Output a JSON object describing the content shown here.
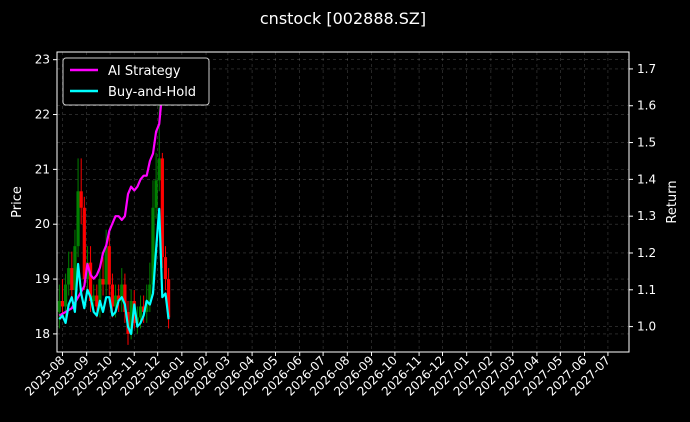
{
  "chart_data": {
    "type": "line",
    "title": "cnstock [002888.SZ]",
    "xlabel": "",
    "ylabel": "Price",
    "y2label": "Return",
    "x_ticks": [
      "2025-08",
      "2025-09",
      "2025-10",
      "2025-11",
      "2025-12",
      "2026-01",
      "2026-02",
      "2026-03",
      "2026-04",
      "2026-05",
      "2026-06",
      "2026-07",
      "2026-08",
      "2026-09",
      "2026-10",
      "2026-11",
      "2026-12",
      "2027-01",
      "2027-02",
      "2027-03",
      "2027-04",
      "2027-05",
      "2027-06",
      "2027-07"
    ],
    "xlim": [
      "2025-07-25",
      "2027-07-28"
    ],
    "ylim": [
      17.67,
      23.14
    ],
    "y_ticks": [
      18,
      19,
      20,
      21,
      22,
      23
    ],
    "y2lim": [
      0.931,
      1.746
    ],
    "y2_ticks": [
      "1.0",
      "1.1",
      "1.2",
      "1.3",
      "1.4",
      "1.5",
      "1.6",
      "1.7"
    ],
    "grid": true,
    "legend": "top-left",
    "background": "#000000",
    "candle_up_color": "#008000",
    "candle_down_color": "#ff0000",
    "candles": {
      "dates": [
        "2025-07-28",
        "2025-08-01",
        "2025-08-05",
        "2025-08-09",
        "2025-08-13",
        "2025-08-17",
        "2025-08-21",
        "2025-08-25",
        "2025-08-29",
        "2025-09-02",
        "2025-09-06",
        "2025-09-10",
        "2025-09-14",
        "2025-09-18",
        "2025-09-22",
        "2025-09-26",
        "2025-09-30",
        "2025-10-04",
        "2025-10-08",
        "2025-10-12",
        "2025-10-16",
        "2025-10-20",
        "2025-10-24",
        "2025-10-28",
        "2025-11-01",
        "2025-11-05",
        "2025-11-09",
        "2025-11-13",
        "2025-11-17",
        "2025-11-21",
        "2025-11-25",
        "2025-11-29",
        "2025-12-03",
        "2025-12-07",
        "2025-12-11",
        "2025-12-15"
      ],
      "open": [
        18.4,
        18.6,
        18.5,
        18.9,
        19.2,
        18.8,
        19.6,
        20.6,
        20.3,
        19.0,
        19.3,
        18.6,
        18.7,
        18.5,
        19.0,
        18.9,
        19.6,
        18.9,
        18.5,
        18.7,
        18.6,
        18.9,
        18.4,
        18.0,
        18.6,
        18.2,
        18.3,
        18.5,
        18.4,
        18.6,
        18.9,
        20.3,
        20.8,
        21.2,
        19.4,
        19.0
      ],
      "close": [
        18.6,
        18.5,
        18.9,
        19.2,
        18.8,
        19.6,
        20.6,
        20.3,
        19.0,
        19.3,
        18.6,
        18.7,
        18.5,
        19.0,
        18.9,
        19.6,
        18.9,
        18.5,
        18.7,
        18.6,
        18.9,
        18.4,
        18.0,
        18.6,
        18.2,
        18.3,
        18.5,
        18.4,
        18.6,
        18.9,
        20.3,
        20.8,
        21.2,
        19.4,
        19.0,
        18.3
      ],
      "high": [
        18.9,
        19.0,
        19.1,
        19.5,
        19.5,
        19.9,
        21.2,
        21.2,
        20.5,
        19.6,
        19.6,
        18.9,
        18.9,
        19.2,
        19.4,
        19.9,
        19.9,
        19.1,
        18.9,
        18.9,
        19.2,
        19.1,
        18.6,
        18.8,
        18.8,
        18.5,
        18.7,
        18.7,
        18.9,
        19.3,
        20.8,
        21.3,
        22.6,
        21.3,
        19.6,
        19.2
      ],
      "low": [
        18.1,
        18.3,
        18.3,
        18.7,
        18.6,
        18.6,
        19.4,
        20.0,
        18.8,
        18.8,
        18.4,
        18.4,
        18.3,
        18.3,
        18.7,
        18.7,
        18.7,
        18.3,
        18.3,
        18.4,
        18.4,
        18.2,
        17.8,
        17.9,
        18.1,
        18.0,
        18.1,
        18.2,
        18.2,
        18.4,
        18.8,
        20.1,
        20.6,
        19.2,
        18.8,
        18.1
      ]
    },
    "series": [
      {
        "name": "AI Strategy",
        "color": "#ff00ff",
        "axis": "right",
        "x": [
          "2025-07-28",
          "2025-08-05",
          "2025-08-13",
          "2025-08-21",
          "2025-08-29",
          "2025-09-02",
          "2025-09-06",
          "2025-09-10",
          "2025-09-14",
          "2025-09-18",
          "2025-09-22",
          "2025-09-26",
          "2025-09-30",
          "2025-10-04",
          "2025-10-08",
          "2025-10-12",
          "2025-10-16",
          "2025-10-20",
          "2025-10-24",
          "2025-10-28",
          "2025-11-01",
          "2025-11-05",
          "2025-11-09",
          "2025-11-13",
          "2025-11-17",
          "2025-11-21",
          "2025-11-25",
          "2025-11-29",
          "2025-12-03",
          "2025-12-07"
        ],
        "values": [
          1.03,
          1.04,
          1.05,
          1.08,
          1.11,
          1.17,
          1.14,
          1.13,
          1.14,
          1.16,
          1.2,
          1.22,
          1.26,
          1.28,
          1.3,
          1.3,
          1.29,
          1.3,
          1.36,
          1.38,
          1.37,
          1.38,
          1.4,
          1.41,
          1.41,
          1.45,
          1.47,
          1.53,
          1.55,
          1.64
        ]
      },
      {
        "name": "Buy-and-Hold",
        "color": "#00ffff",
        "axis": "right",
        "x": [
          "2025-07-28",
          "2025-08-01",
          "2025-08-05",
          "2025-08-09",
          "2025-08-13",
          "2025-08-17",
          "2025-08-21",
          "2025-08-25",
          "2025-08-29",
          "2025-09-02",
          "2025-09-06",
          "2025-09-10",
          "2025-09-14",
          "2025-09-18",
          "2025-09-22",
          "2025-09-26",
          "2025-09-30",
          "2025-10-04",
          "2025-10-08",
          "2025-10-12",
          "2025-10-16",
          "2025-10-20",
          "2025-10-24",
          "2025-10-28",
          "2025-11-01",
          "2025-11-05",
          "2025-11-09",
          "2025-11-13",
          "2025-11-17",
          "2025-11-21",
          "2025-11-25",
          "2025-11-29",
          "2025-12-03",
          "2025-12-07",
          "2025-12-11",
          "2025-12-15"
        ],
        "values": [
          1.02,
          1.03,
          1.01,
          1.06,
          1.08,
          1.04,
          1.17,
          1.09,
          1.05,
          1.1,
          1.08,
          1.04,
          1.03,
          1.07,
          1.04,
          1.08,
          1.08,
          1.03,
          1.04,
          1.07,
          1.08,
          1.06,
          1.0,
          0.98,
          1.06,
          1.0,
          1.01,
          1.03,
          1.07,
          1.06,
          1.09,
          1.21,
          1.32,
          1.08,
          1.09,
          1.02
        ]
      }
    ]
  }
}
